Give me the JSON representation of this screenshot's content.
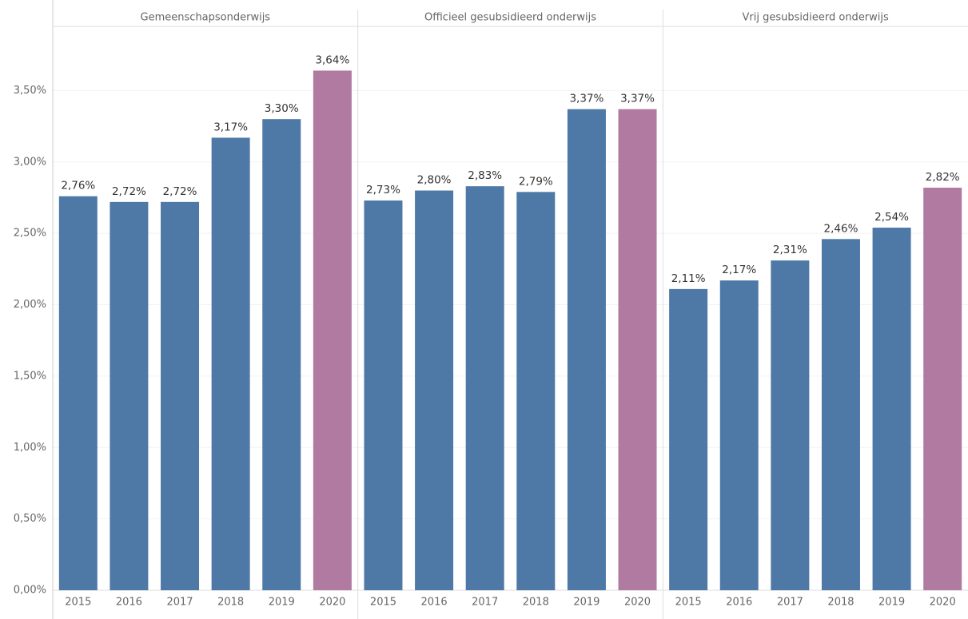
{
  "chart_data": [
    {
      "type": "bar",
      "title": "Gemeenschapsonderwijs",
      "categories": [
        "2015",
        "2016",
        "2017",
        "2018",
        "2019",
        "2020"
      ],
      "values": [
        2.76,
        2.72,
        2.72,
        3.17,
        3.3,
        3.64
      ],
      "value_labels": [
        "2,76%",
        "2,72%",
        "2,72%",
        "3,17%",
        "3,30%",
        "3,64%"
      ],
      "colors": [
        "#4e79a7",
        "#4e79a7",
        "#4e79a7",
        "#4e79a7",
        "#4e79a7",
        "#b07aa1"
      ],
      "ylim": [
        0,
        3.95
      ],
      "yticks": [
        {
          "value": 0,
          "label": "0,00%"
        },
        {
          "value": 0.5,
          "label": "0,50%"
        },
        {
          "value": 1,
          "label": "1,00%"
        },
        {
          "value": 1.5,
          "label": "1,50%"
        },
        {
          "value": 2,
          "label": "2,00%"
        },
        {
          "value": 2.5,
          "label": "2,50%"
        },
        {
          "value": 3,
          "label": "3,00%"
        },
        {
          "value": 3.5,
          "label": "3,50%"
        }
      ],
      "grid": true
    },
    {
      "type": "bar",
      "title": "Officieel gesubsidieerd onderwijs",
      "categories": [
        "2015",
        "2016",
        "2017",
        "2018",
        "2019",
        "2020"
      ],
      "values": [
        2.73,
        2.8,
        2.83,
        2.79,
        3.37,
        3.37
      ],
      "value_labels": [
        "2,73%",
        "2,80%",
        "2,83%",
        "2,79%",
        "3,37%",
        "3,37%"
      ],
      "colors": [
        "#4e79a7",
        "#4e79a7",
        "#4e79a7",
        "#4e79a7",
        "#4e79a7",
        "#b07aa1"
      ]
    },
    {
      "type": "bar",
      "title": "Vrij gesubsidieerd onderwijs",
      "categories": [
        "2015",
        "2016",
        "2017",
        "2018",
        "2019",
        "2020"
      ],
      "values": [
        2.11,
        2.17,
        2.31,
        2.46,
        2.54,
        2.82
      ],
      "value_labels": [
        "2,11%",
        "2,17%",
        "2,31%",
        "2,46%",
        "2,54%",
        "2,82%"
      ],
      "colors": [
        "#4e79a7",
        "#4e79a7",
        "#4e79a7",
        "#4e79a7",
        "#4e79a7",
        "#b07aa1"
      ]
    }
  ]
}
